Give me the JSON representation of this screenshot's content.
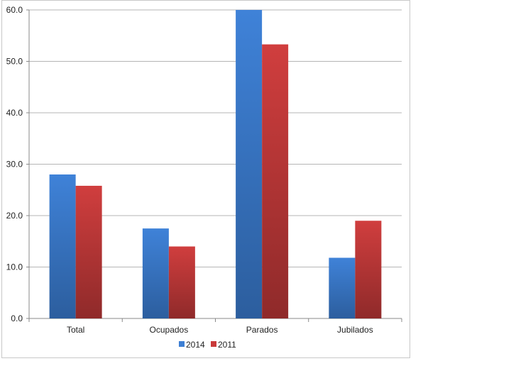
{
  "chart_data": {
    "type": "bar",
    "categories": [
      "Total",
      "Ocupados",
      "Parados",
      "Jubilados"
    ],
    "series": [
      {
        "name": "2014",
        "values": [
          28.0,
          17.5,
          60.0,
          11.8
        ],
        "color": "#3d7fd4"
      },
      {
        "name": "2011",
        "values": [
          25.8,
          14.0,
          53.3,
          19.0
        ],
        "color": "#c93a3a"
      }
    ],
    "ylim": [
      0,
      60
    ],
    "yticks": [
      "0.0",
      "10.0",
      "20.0",
      "30.0",
      "40.0",
      "50.0",
      "60.0"
    ],
    "grid": true,
    "legend_position": "bottom",
    "title": "",
    "xlabel": "",
    "ylabel": ""
  }
}
